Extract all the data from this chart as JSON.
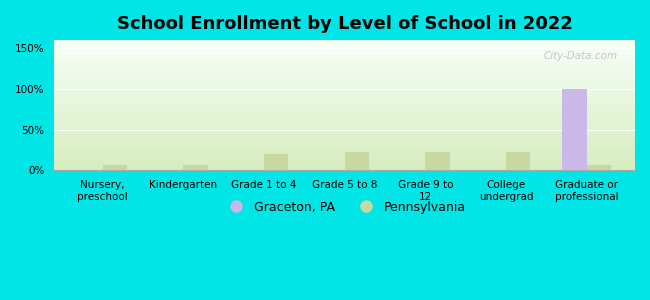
{
  "title": "School Enrollment by Level of School in 2022",
  "categories": [
    "Nursery,\npreschool",
    "Kindergarten",
    "Grade 1 to 4",
    "Grade 5 to 8",
    "Grade 9 to\n12",
    "College\nundergrad",
    "Graduate or\nprofessional"
  ],
  "graceton_values": [
    0,
    0,
    0,
    0,
    0,
    0,
    100
  ],
  "pennsylvania_values": [
    7,
    6,
    20,
    22,
    22,
    22,
    6
  ],
  "graceton_color": "#c9b8e8",
  "pennsylvania_color": "#c8d9a0",
  "background_color": "#00e5e5",
  "title_fontsize": 13,
  "tick_fontsize": 7.5,
  "legend_fontsize": 9,
  "ylim": [
    0,
    160
  ],
  "yticks": [
    0,
    50,
    100,
    150
  ],
  "ytick_labels": [
    "0%",
    "50%",
    "100%",
    "150%"
  ],
  "bar_width": 0.3,
  "watermark": "City-Data.com"
}
